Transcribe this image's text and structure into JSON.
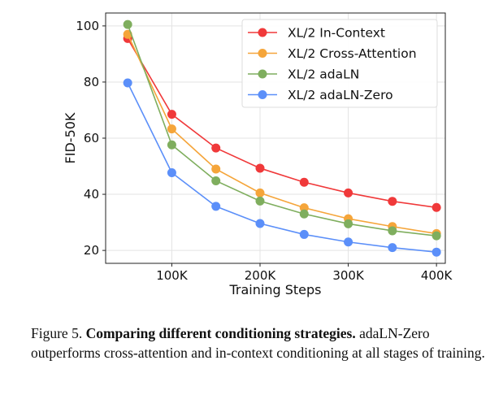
{
  "chart_data": {
    "type": "line",
    "xlabel": "Training Steps",
    "ylabel": "FID-50K",
    "x": [
      50000,
      100000,
      150000,
      200000,
      250000,
      300000,
      350000,
      400000
    ],
    "xticks": [
      100000,
      200000,
      300000,
      400000
    ],
    "xtick_labels": [
      "100K",
      "200K",
      "300K",
      "400K"
    ],
    "yticks": [
      20,
      40,
      60,
      80,
      100
    ],
    "xlim": [
      25000,
      410000
    ],
    "ylim": [
      15.4,
      104.6
    ],
    "grid": true,
    "legend_position": "top-right",
    "series": [
      {
        "name": "XL/2 In-Context",
        "color": "#f0393a",
        "values": [
          95.5,
          68.5,
          56.5,
          49.3,
          44.3,
          40.5,
          37.5,
          35.3
        ]
      },
      {
        "name": "XL/2 Cross-Attention",
        "color": "#f5a53a",
        "values": [
          97,
          63.3,
          49,
          40.5,
          35.2,
          31.3,
          28.5,
          26
        ]
      },
      {
        "name": "XL/2 adaLN",
        "color": "#7fae5e",
        "values": [
          100.5,
          57.6,
          44.8,
          37.6,
          33,
          29.5,
          27,
          25.2
        ]
      },
      {
        "name": "XL/2 adaLN-Zero",
        "color": "#5b8ff9",
        "values": [
          79.7,
          47.7,
          35.7,
          29.6,
          25.7,
          23,
          21,
          19.4
        ]
      }
    ]
  },
  "caption": {
    "label": "Figure 5.",
    "title": "Comparing different conditioning strategies.",
    "body": "adaLN-Zero outperforms cross-attention and in-context conditioning at all stages of training."
  }
}
